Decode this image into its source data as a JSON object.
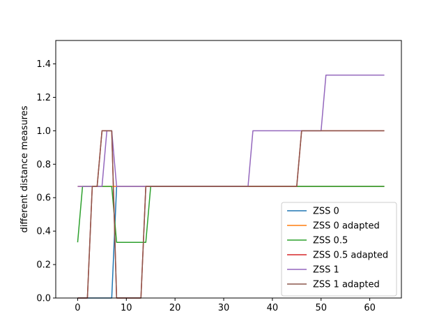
{
  "chart_data": {
    "type": "line",
    "title": "",
    "xlabel": "",
    "ylabel": "different distance measures",
    "xlim": [
      -4.5,
      66.5
    ],
    "ylim": [
      0.0,
      1.54
    ],
    "xticks": [
      0,
      10,
      20,
      30,
      40,
      50,
      60
    ],
    "yticks": [
      0.0,
      0.2,
      0.4,
      0.6,
      0.8,
      1.0,
      1.2,
      1.4
    ],
    "grid": false,
    "legend_position": "lower-right",
    "series": [
      {
        "name": "ZSS 0",
        "color": "#1f77b4",
        "points": [
          [
            0,
            0.0
          ],
          [
            7,
            0.0
          ],
          [
            8,
            0.667
          ],
          [
            63,
            0.667
          ]
        ]
      },
      {
        "name": "ZSS 0 adapted",
        "color": "#ff7f0e",
        "points": [
          [
            0,
            0.667
          ],
          [
            7,
            0.667
          ],
          [
            8,
            0.667
          ],
          [
            63,
            0.667
          ]
        ]
      },
      {
        "name": "ZSS 0.5",
        "color": "#2ca02c",
        "points": [
          [
            0,
            0.333
          ],
          [
            1,
            0.667
          ],
          [
            7,
            0.667
          ],
          [
            8,
            0.333
          ],
          [
            14,
            0.333
          ],
          [
            15,
            0.667
          ],
          [
            63,
            0.667
          ]
        ]
      },
      {
        "name": "ZSS 0.5 adapted",
        "color": "#d62728",
        "points": [
          [
            0,
            0.0
          ],
          [
            2,
            0.0
          ],
          [
            3,
            0.667
          ],
          [
            4,
            0.667
          ],
          [
            5,
            1.0
          ],
          [
            7,
            1.0
          ],
          [
            8,
            0.0
          ],
          [
            13,
            0.0
          ],
          [
            14,
            0.667
          ],
          [
            45,
            0.667
          ],
          [
            46,
            1.0
          ],
          [
            63,
            1.0
          ]
        ]
      },
      {
        "name": "ZSS 1",
        "color": "#9467bd",
        "points": [
          [
            0,
            0.667
          ],
          [
            5,
            0.667
          ],
          [
            6,
            1.0
          ],
          [
            7,
            1.0
          ],
          [
            8,
            0.667
          ],
          [
            35,
            0.667
          ],
          [
            36,
            1.0
          ],
          [
            50,
            1.0
          ],
          [
            51,
            1.333
          ],
          [
            63,
            1.333
          ]
        ]
      },
      {
        "name": "ZSS 1 adapted",
        "color": "#8c564b",
        "points": [
          [
            0,
            0.0
          ],
          [
            2,
            0.0
          ],
          [
            3,
            0.667
          ],
          [
            4,
            0.667
          ],
          [
            5,
            1.0
          ],
          [
            7,
            1.0
          ],
          [
            8,
            0.0
          ],
          [
            13,
            0.0
          ],
          [
            14,
            0.667
          ],
          [
            45,
            0.667
          ],
          [
            46,
            1.0
          ],
          [
            63,
            1.0
          ]
        ]
      }
    ]
  }
}
